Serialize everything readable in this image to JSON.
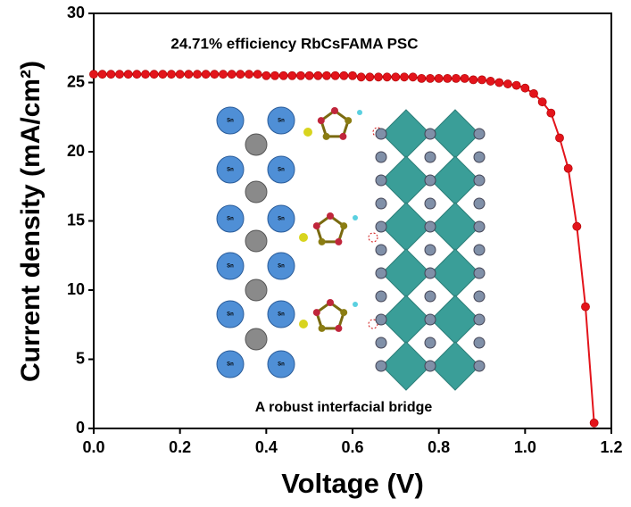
{
  "chart_data": {
    "type": "line",
    "title": "24.71% efficiency RbCsFAMA PSC",
    "inset_caption": "A robust interfacial bridge",
    "inset_atom_label": "Sn",
    "x_label": "Voltage (V)",
    "y_label": "Current density (mA/cm²)",
    "x": [
      0.0,
      0.02,
      0.04,
      0.06,
      0.08,
      0.1,
      0.12,
      0.14,
      0.16,
      0.18,
      0.2,
      0.22,
      0.24,
      0.26,
      0.28,
      0.3,
      0.32,
      0.34,
      0.36,
      0.38,
      0.4,
      0.42,
      0.44,
      0.46,
      0.48,
      0.5,
      0.52,
      0.54,
      0.56,
      0.58,
      0.6,
      0.62,
      0.64,
      0.66,
      0.68,
      0.7,
      0.72,
      0.74,
      0.76,
      0.78,
      0.8,
      0.82,
      0.84,
      0.86,
      0.88,
      0.9,
      0.92,
      0.94,
      0.96,
      0.98,
      1.0,
      1.02,
      1.04,
      1.06,
      1.08,
      1.1,
      1.12,
      1.14,
      1.16
    ],
    "series": [
      {
        "name": "RbCsFAMA PSC",
        "color": "#e3141b",
        "values": [
          25.6,
          25.6,
          25.6,
          25.6,
          25.6,
          25.6,
          25.6,
          25.6,
          25.6,
          25.6,
          25.6,
          25.6,
          25.6,
          25.6,
          25.6,
          25.6,
          25.6,
          25.6,
          25.6,
          25.6,
          25.5,
          25.5,
          25.5,
          25.5,
          25.5,
          25.5,
          25.5,
          25.5,
          25.5,
          25.5,
          25.5,
          25.4,
          25.4,
          25.4,
          25.4,
          25.4,
          25.4,
          25.4,
          25.3,
          25.3,
          25.3,
          25.3,
          25.3,
          25.3,
          25.2,
          25.2,
          25.1,
          25.0,
          24.9,
          24.8,
          24.6,
          24.2,
          23.6,
          22.8,
          21.0,
          18.8,
          14.6,
          8.8,
          0.4
        ]
      }
    ],
    "xlim": [
      0,
      1.2
    ],
    "xticks": [
      {
        "value": 0,
        "label": "0.0"
      },
      0.2,
      0.4,
      0.6,
      0.8,
      {
        "value": 1,
        "label": "1.0"
      },
      1.2
    ],
    "ylim": [
      0,
      30
    ],
    "yticks": [
      0,
      5,
      10,
      15,
      20,
      25,
      30
    ]
  }
}
